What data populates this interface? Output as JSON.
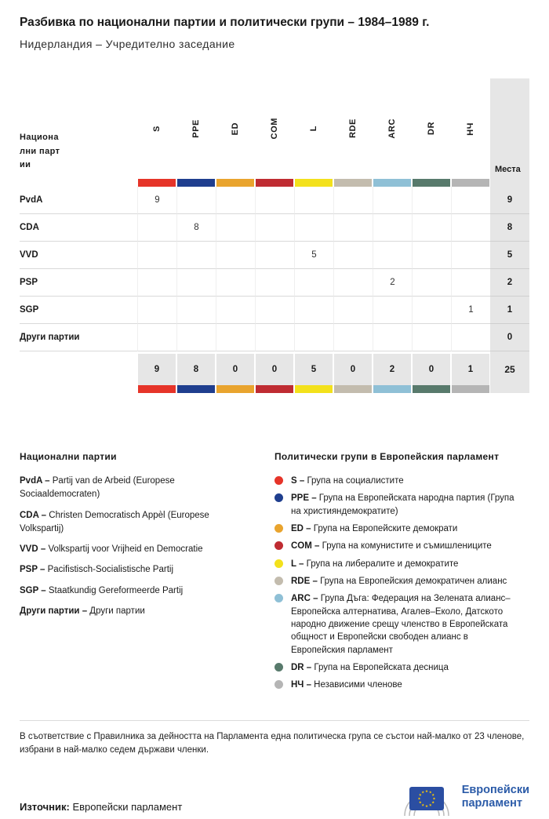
{
  "header": {
    "title": "Разбивка по национални партии и политически групи – 1984–1989 г.",
    "subtitle": "Нидерландия – Учредително заседание"
  },
  "table": {
    "row_header_label": "Национални партии",
    "seats_header": "Места",
    "groups": [
      {
        "code": "S",
        "color": "#e63429"
      },
      {
        "code": "PPE",
        "color": "#1f3e8e"
      },
      {
        "code": "ED",
        "color": "#e9a42e"
      },
      {
        "code": "COM",
        "color": "#bf2c32"
      },
      {
        "code": "L",
        "color": "#f3e11c"
      },
      {
        "code": "RDE",
        "color": "#c3bcae"
      },
      {
        "code": "ARC",
        "color": "#8fc0d6"
      },
      {
        "code": "DR",
        "color": "#587a6c"
      },
      {
        "code": "НЧ",
        "color": "#b5b5b5"
      }
    ],
    "rows": [
      {
        "party": "PvdA",
        "values": [
          "9",
          "",
          "",
          "",
          "",
          "",
          "",
          "",
          ""
        ],
        "seats": "9"
      },
      {
        "party": "CDA",
        "values": [
          "",
          "8",
          "",
          "",
          "",
          "",
          "",
          "",
          ""
        ],
        "seats": "8"
      },
      {
        "party": "VVD",
        "values": [
          "",
          "",
          "",
          "",
          "5",
          "",
          "",
          "",
          ""
        ],
        "seats": "5"
      },
      {
        "party": "PSP",
        "values": [
          "",
          "",
          "",
          "",
          "",
          "",
          "2",
          "",
          ""
        ],
        "seats": "2"
      },
      {
        "party": "SGP",
        "values": [
          "",
          "",
          "",
          "",
          "",
          "",
          "",
          "",
          "1"
        ],
        "seats": "1"
      },
      {
        "party": "Други партии",
        "values": [
          "",
          "",
          "",
          "",
          "",
          "",
          "",
          "",
          ""
        ],
        "seats": "0"
      }
    ],
    "totals": [
      "9",
      "8",
      "0",
      "0",
      "5",
      "0",
      "2",
      "0",
      "1"
    ],
    "total_seats": "25"
  },
  "chart_data": {
    "type": "table",
    "title": "Разбивка по национални партии и политически групи – 1984–1989 г.",
    "subtitle": "Нидерландия – Учредително заседание",
    "columns": [
      "S",
      "PPE",
      "ED",
      "COM",
      "L",
      "RDE",
      "ARC",
      "DR",
      "НЧ",
      "Места"
    ],
    "rows": [
      {
        "party": "PvdA",
        "group": "S",
        "seats": 9
      },
      {
        "party": "CDA",
        "group": "PPE",
        "seats": 8
      },
      {
        "party": "VVD",
        "group": "L",
        "seats": 5
      },
      {
        "party": "PSP",
        "group": "ARC",
        "seats": 2
      },
      {
        "party": "SGP",
        "group": "НЧ",
        "seats": 1
      },
      {
        "party": "Други партии",
        "group": null,
        "seats": 0
      }
    ],
    "totals_by_group": {
      "S": 9,
      "PPE": 8,
      "ED": 0,
      "COM": 0,
      "L": 5,
      "RDE": 0,
      "ARC": 2,
      "DR": 0,
      "НЧ": 1
    },
    "total_seats": 25
  },
  "legend_parties": {
    "heading": "Национални партии",
    "items": [
      {
        "code": "PvdA –",
        "text": "Partij van de Arbeid (Europese Sociaaldemocraten)"
      },
      {
        "code": "CDA –",
        "text": "Christen Democratisch Appèl (Europese Volkspartij)"
      },
      {
        "code": "VVD –",
        "text": "Volkspartij voor Vrijheid en Democratie"
      },
      {
        "code": "PSP –",
        "text": "Pacifistisch-Socialistische Partij"
      },
      {
        "code": "SGP –",
        "text": "Staatkundig Gereformeerde Partij"
      },
      {
        "code": "Други партии –",
        "text": "Други партии"
      }
    ]
  },
  "legend_groups": {
    "heading": "Политически групи в Европейския парламент",
    "items": [
      {
        "code": "S –",
        "color": "#e63429",
        "text": "Група на социалистите"
      },
      {
        "code": "PPE –",
        "color": "#1f3e8e",
        "text": "Група на Европейската народна партия (Група на християндемократите)"
      },
      {
        "code": "ED –",
        "color": "#e9a42e",
        "text": "Група на Европейските демократи"
      },
      {
        "code": "COM –",
        "color": "#bf2c32",
        "text": "Група на комунистите и съмишлениците"
      },
      {
        "code": "L –",
        "color": "#f3e11c",
        "text": "Група на либералите и демократите"
      },
      {
        "code": "RDE –",
        "color": "#c3bcae",
        "text": "Група на Европейския демократичен алианс"
      },
      {
        "code": "ARC –",
        "color": "#8fc0d6",
        "text": "Група Дъга: Федерация на Зелената алианс–Европейска алтернатива, Агалев–Еколо, Датското народно движение срещу членство в Европейската общност и Европейски свободен алианс в Европейския парламент"
      },
      {
        "code": "DR –",
        "color": "#587a6c",
        "text": "Група на Европейската десница"
      },
      {
        "code": "НЧ –",
        "color": "#b5b5b5",
        "text": "Независими членове"
      }
    ]
  },
  "footnote": "В съответствие с Правилника за дейността на Парламента една политическа група се състои най-малко от 23 членове, избрани в най-малко седем държави членки.",
  "source": {
    "label": "Източник:",
    "text": "Европейски парламент"
  },
  "logo": {
    "line1": "Европейски",
    "line2": "парламент",
    "flag_color": "#2b4ea2",
    "star_color": "#ffcc00",
    "text_color": "#2b5ba8",
    "arc_color": "#bbbbbb"
  }
}
